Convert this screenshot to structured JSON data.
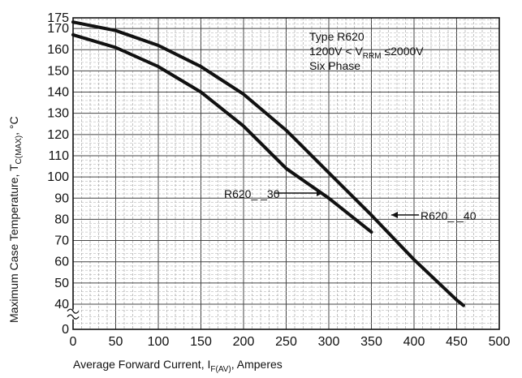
{
  "chart_data": {
    "type": "line",
    "xlabel": "Average Forward Current, I",
    "xlabel_sub": "F(AV)",
    "xlabel_suffix": ", Amperes",
    "ylabel": "Maximum Case Temperature, T",
    "ylabel_sub": "C(MAX)",
    "ylabel_suffix": ", °C",
    "xlim": [
      0,
      500
    ],
    "ylim_main": [
      40,
      175
    ],
    "ylim_note": "y-axis break between 0 and 40",
    "x_ticks": [
      0,
      50,
      100,
      150,
      200,
      250,
      300,
      350,
      400,
      450,
      500
    ],
    "y_ticks": [
      0,
      40,
      50,
      60,
      70,
      80,
      90,
      100,
      110,
      120,
      130,
      140,
      150,
      160,
      170,
      175
    ],
    "grid": true,
    "annotation": {
      "line1": "Type R620",
      "line2_pre": "1200V < V",
      "line2_sub": "RRM",
      "line2_post": " ≤2000V",
      "line3": "Six Phase"
    },
    "series": [
      {
        "name": "R620_ _40",
        "x": [
          0,
          50,
          100,
          150,
          200,
          250,
          300,
          350,
          400,
          450,
          458
        ],
        "y": [
          173,
          169,
          162,
          152,
          139,
          122,
          102,
          82,
          61,
          42,
          38
        ]
      },
      {
        "name": "R620_ _30",
        "x": [
          0,
          50,
          100,
          150,
          200,
          250,
          300,
          350
        ],
        "y": [
          167,
          161,
          152,
          140,
          124,
          104,
          90,
          74
        ]
      }
    ]
  },
  "labels": {
    "series_40": "R620_ _40",
    "series_30": "R620_ _30"
  }
}
